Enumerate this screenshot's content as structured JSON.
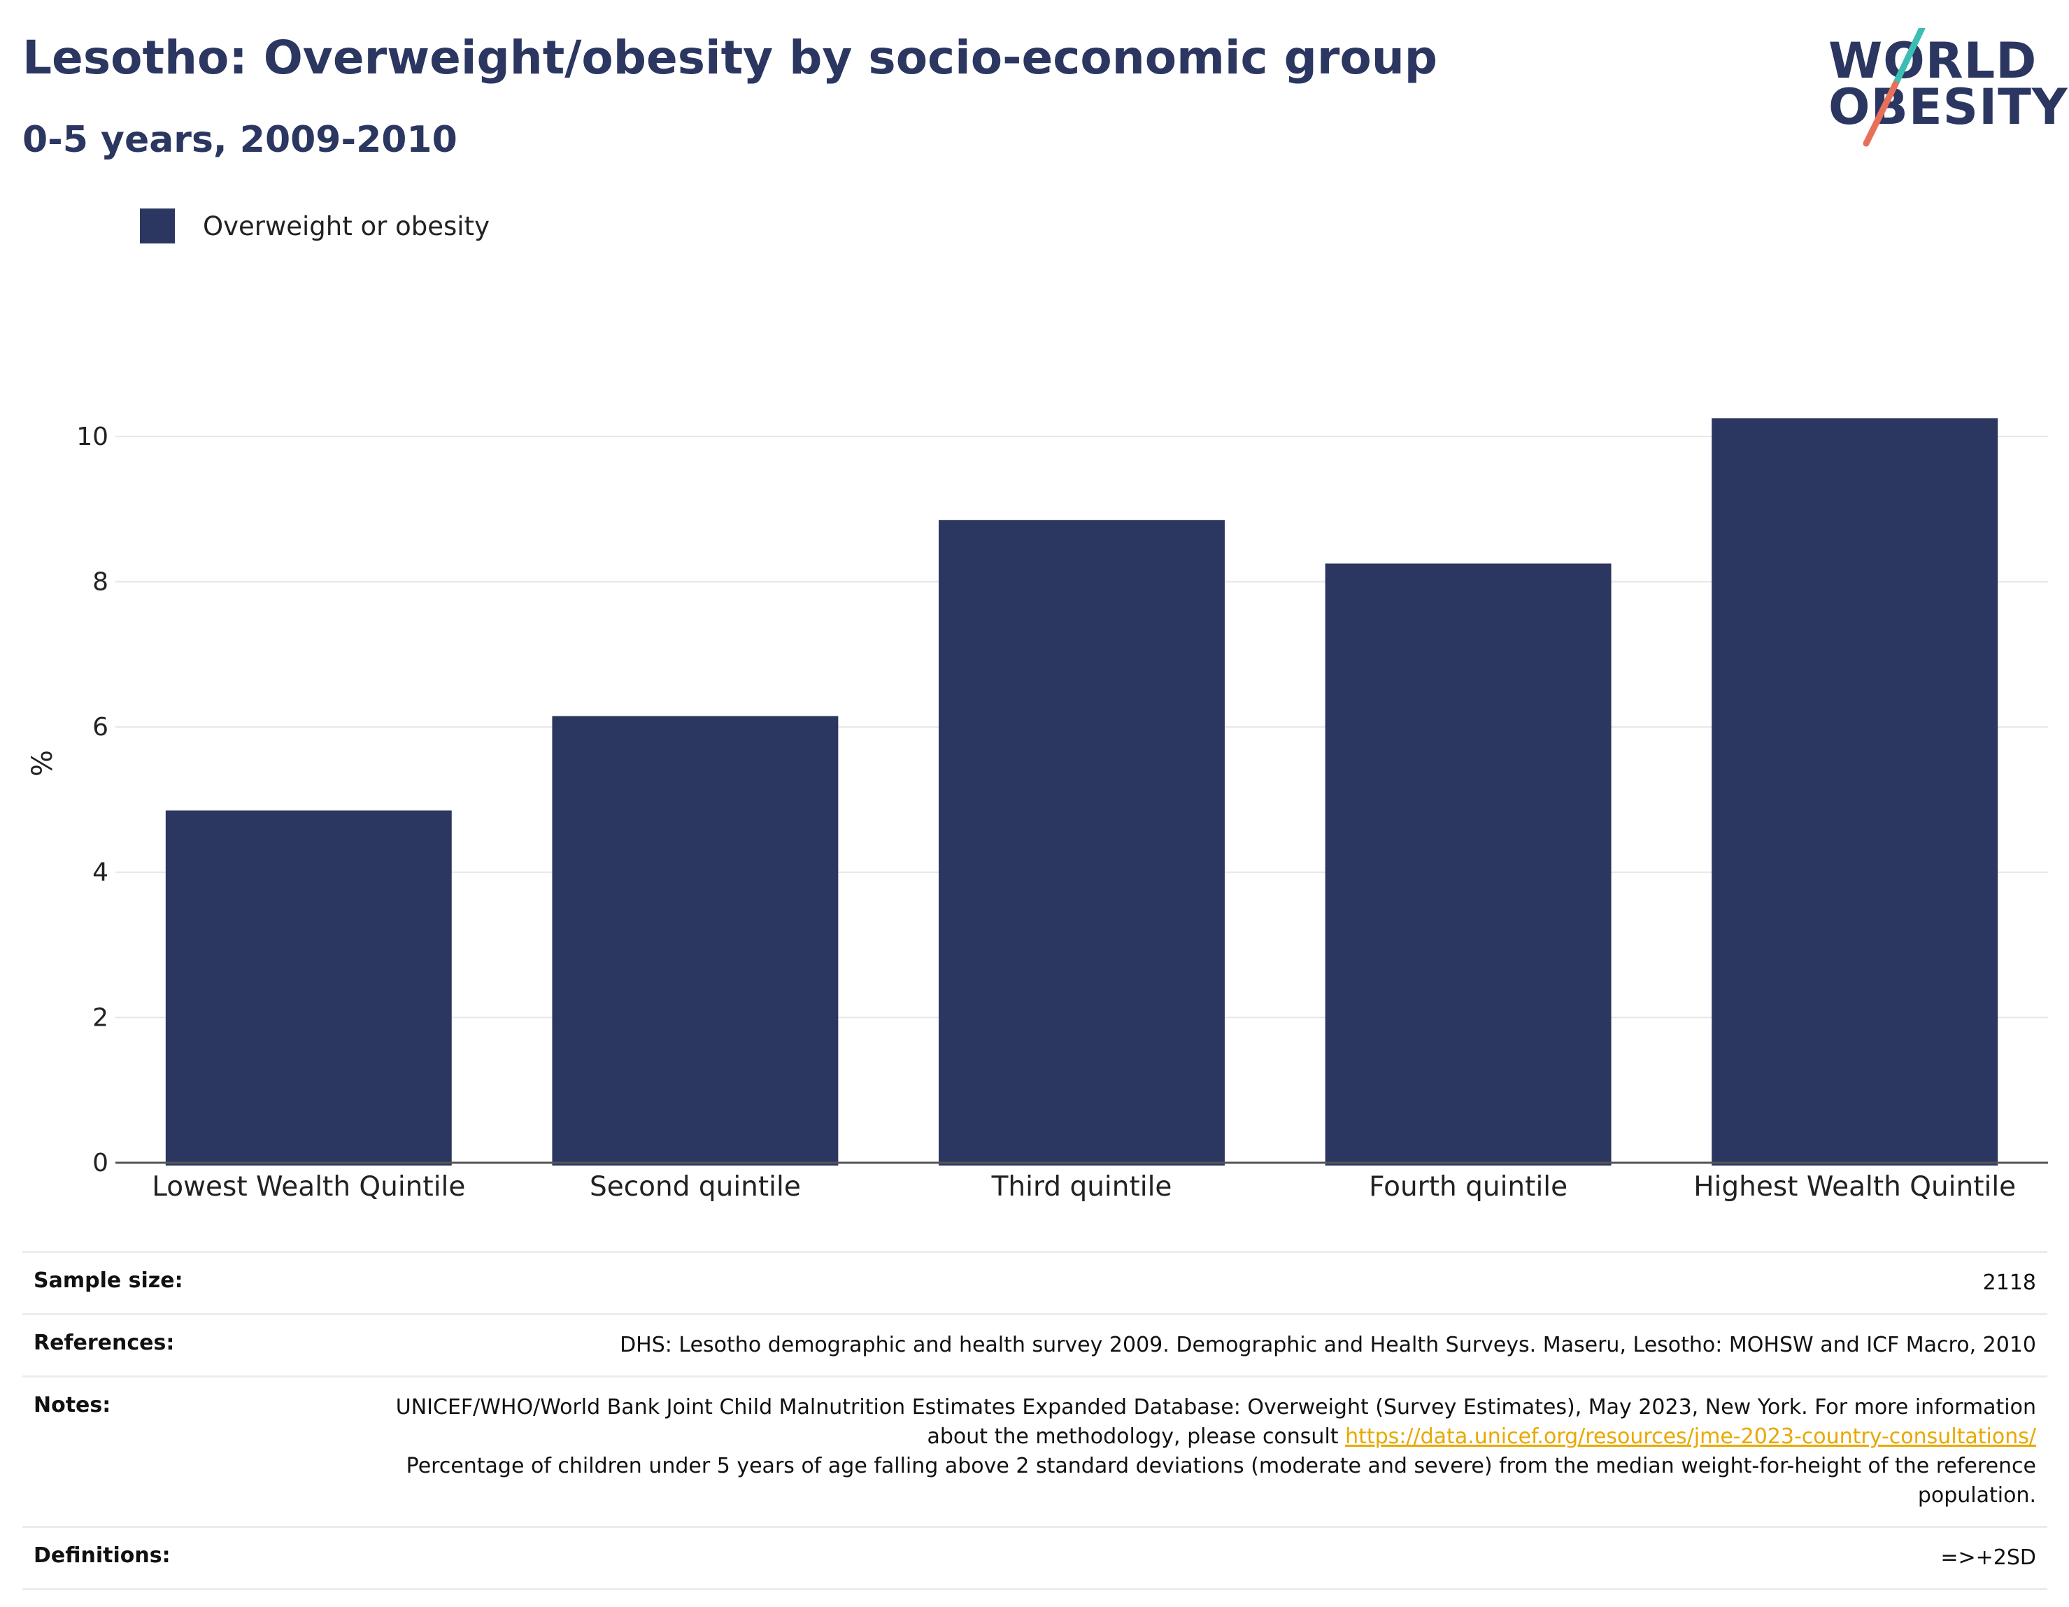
{
  "header": {
    "title": "Lesotho: Overweight/obesity by socio-economic group",
    "subtitle": "0-5 years, 2009-2010"
  },
  "logo": {
    "line1": "WORLD",
    "line2": "OBESITY",
    "colors": {
      "text": "#2b3661",
      "slash_top": "#3bbfb5",
      "slash_bottom": "#e8705a"
    }
  },
  "colors": {
    "bar": "#2b3661",
    "grid": "#e6e6e6",
    "axis": "#555555"
  },
  "chart_data": {
    "type": "bar",
    "categories": [
      "Lowest Wealth Quintile",
      "Second quintile",
      "Third quintile",
      "Fourth quintile",
      "Highest Wealth Quintile"
    ],
    "series": [
      {
        "name": "Overweight or obesity",
        "values": [
          4.85,
          6.15,
          8.85,
          8.25,
          10.25
        ]
      }
    ],
    "ylabel": "%",
    "ylim": [
      0,
      11
    ],
    "yticks": [
      0,
      2,
      4,
      6,
      8,
      10
    ],
    "grid": true,
    "legend": "top-left"
  },
  "info": {
    "sample_size": {
      "label": "Sample size:",
      "value": "2118"
    },
    "references": {
      "label": "References:",
      "value": "DHS: Lesotho demographic and health survey 2009. Demographic and Health Surveys. Maseru, Lesotho: MOHSW and ICF Macro, 2010"
    },
    "notes": {
      "label": "Notes:",
      "text1": "UNICEF/WHO/World Bank Joint Child Malnutrition Estimates Expanded Database: Overweight (Survey Estimates), May 2023, New York. For more information about the methodology, please consult ",
      "link": "https://data.unicef.org/resources/jme-2023-country-consultations/",
      "text2": "Percentage of children under 5 years of age falling above 2 standard deviations (moderate and severe) from the median weight-for-height of the reference population."
    },
    "definitions": {
      "label": "Definitions:",
      "value": "=>+2SD"
    }
  }
}
